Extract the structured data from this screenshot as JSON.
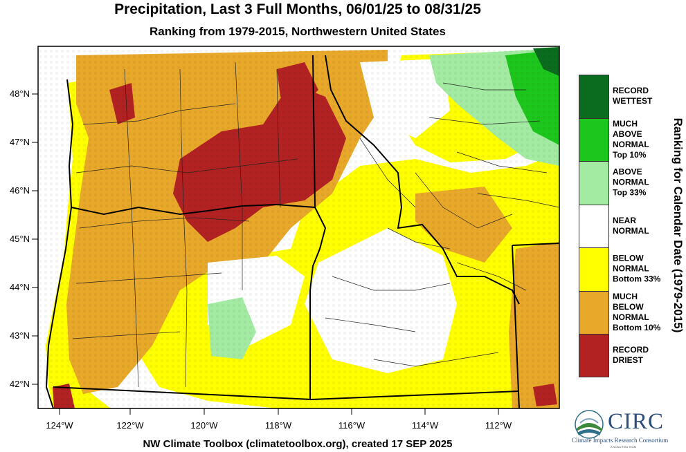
{
  "title": "Precipitation, Last 3 Full Months, 06/01/25 to 08/31/25",
  "subtitle": "Ranking from 1979-2015, Northwestern United States",
  "credit": "NW Climate Toolbox (climatetoolbox.org), created 17 SEP 2025",
  "legend_title": "Ranking for Calendar Date (1979-2015)",
  "legend": [
    {
      "label": "RECORD\nWETTEST",
      "color": "#0b6b1f"
    },
    {
      "label": "MUCH\nABOVE\nNORMAL\nTop 10%",
      "color": "#1dc61d"
    },
    {
      "label": "ABOVE\nNORMAL\nTop 33%",
      "color": "#a3eba3"
    },
    {
      "label": "NEAR\nNORMAL",
      "color": "#ffffff"
    },
    {
      "label": "BELOW\nNORMAL\nBottom 33%",
      "color": "#ffff00"
    },
    {
      "label": "MUCH\nBELOW\nNORMAL\nBottom 10%",
      "color": "#e8a82a"
    },
    {
      "label": "RECORD\nDRIEST",
      "color": "#b22222"
    }
  ],
  "axes": {
    "lat_labels": [
      "48°N",
      "47°N",
      "46°N",
      "45°N",
      "44°N",
      "43°N",
      "42°N"
    ],
    "lon_labels": [
      "124°W",
      "122°W",
      "120°W",
      "118°W",
      "116°W",
      "114°W",
      "112°W"
    ]
  },
  "logo": {
    "name": "CIRC",
    "full_name": "Climate Impacts Research Consortium",
    "tagline": "A NOAA RISA TEAM"
  }
}
